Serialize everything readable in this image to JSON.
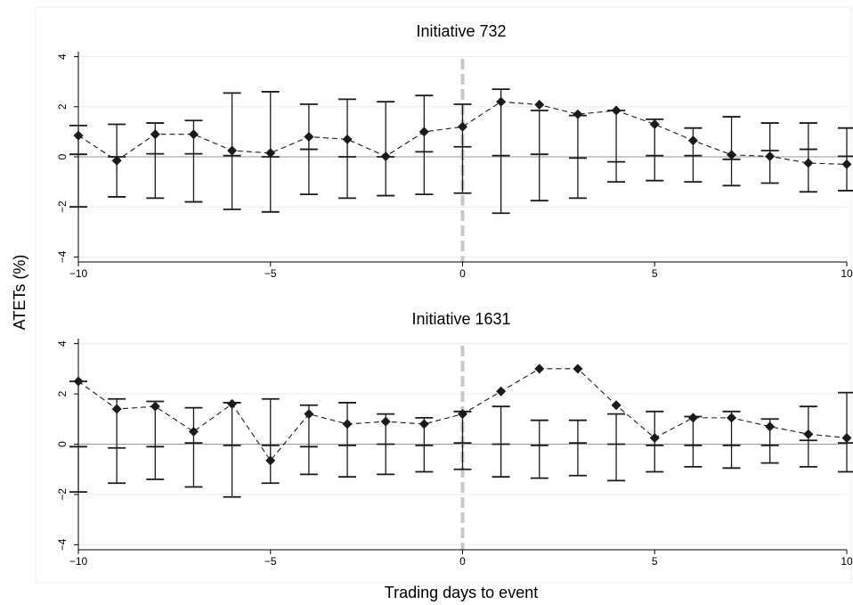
{
  "ylabel": "ATETs (%)",
  "xlabel": "Trading days to event",
  "chart_data": [
    {
      "type": "line",
      "title": "Initiative 732",
      "x": [
        -10,
        -9,
        -8,
        -7,
        -6,
        -5,
        -4,
        -3,
        -2,
        -1,
        0,
        1,
        2,
        3,
        4,
        5,
        6,
        7,
        8,
        9,
        10
      ],
      "values": [
        0.85,
        -0.15,
        0.9,
        0.9,
        0.25,
        0.15,
        0.8,
        0.7,
        0.02,
        1.0,
        1.2,
        2.2,
        2.08,
        1.7,
        1.85,
        1.3,
        0.65,
        0.08,
        0.02,
        -0.25,
        -0.3
      ],
      "ci_upper": [
        1.25,
        1.3,
        1.35,
        1.45,
        2.55,
        2.6,
        2.1,
        2.3,
        2.2,
        2.45,
        2.1,
        2.7,
        1.85,
        1.65,
        1.85,
        1.5,
        1.15,
        1.6,
        1.35,
        1.35,
        1.15
      ],
      "ci_lower": [
        -2.0,
        -1.6,
        -1.65,
        -1.8,
        -2.1,
        -2.2,
        -1.5,
        -1.65,
        -1.55,
        -1.5,
        -1.45,
        -2.25,
        -1.75,
        -1.65,
        -1.0,
        -0.95,
        -1.0,
        -1.15,
        -1.05,
        -1.4,
        -1.35
      ],
      "ci_upper_inner": [
        0.1,
        0.0,
        0.12,
        0.12,
        0.05,
        0.0,
        0.3,
        0.0,
        0.0,
        0.2,
        0.4,
        0.05,
        0.1,
        -0.05,
        -0.2,
        0.05,
        0.05,
        -0.1,
        0.25,
        0.3,
        0.02
      ],
      "xticks": [
        -10,
        -5,
        0,
        5,
        10
      ],
      "yticks": [
        -4,
        -2,
        0,
        2,
        4
      ],
      "xlim": [
        -10,
        10
      ],
      "ylim": [
        -4.2,
        4.2
      ],
      "event_x": 0,
      "grid": true
    },
    {
      "type": "line",
      "title": "Initiative 1631",
      "x": [
        -10,
        -9,
        -8,
        -7,
        -6,
        -5,
        -4,
        -3,
        -2,
        -1,
        0,
        1,
        2,
        3,
        4,
        5,
        6,
        7,
        8,
        9,
        10
      ],
      "values": [
        2.5,
        1.4,
        1.5,
        0.5,
        1.6,
        -0.65,
        1.2,
        0.8,
        0.9,
        0.8,
        1.2,
        2.1,
        3.0,
        3.0,
        1.55,
        0.25,
        1.05,
        1.05,
        0.7,
        0.4,
        0.25
      ],
      "ci_upper": [
        2.5,
        1.8,
        1.7,
        1.45,
        1.65,
        1.8,
        1.55,
        1.65,
        1.2,
        1.05,
        1.3,
        1.5,
        0.95,
        0.95,
        1.2,
        1.3,
        1.1,
        1.3,
        1.0,
        1.5,
        2.05
      ],
      "ci_lower": [
        -1.9,
        -1.55,
        -1.4,
        -1.7,
        -2.1,
        -1.55,
        -1.2,
        -1.3,
        -1.2,
        -1.1,
        -1.0,
        -1.3,
        -1.35,
        -1.25,
        -1.45,
        -1.1,
        -0.9,
        -0.95,
        -0.75,
        -0.9,
        -1.1
      ],
      "ci_upper_inner": [
        -0.1,
        -0.15,
        -0.1,
        0.05,
        -0.05,
        -0.05,
        -0.1,
        -0.05,
        0.0,
        -0.05,
        0.05,
        0.0,
        -0.05,
        0.05,
        0.0,
        -0.05,
        -0.05,
        -0.05,
        -0.05,
        0.15,
        0.05
      ],
      "xticks": [
        -10,
        -5,
        0,
        5,
        10
      ],
      "yticks": [
        -4,
        -2,
        0,
        2,
        4
      ],
      "xlim": [
        -10,
        10
      ],
      "ylim": [
        -4.2,
        4.2
      ],
      "event_x": 0,
      "grid": true
    }
  ]
}
